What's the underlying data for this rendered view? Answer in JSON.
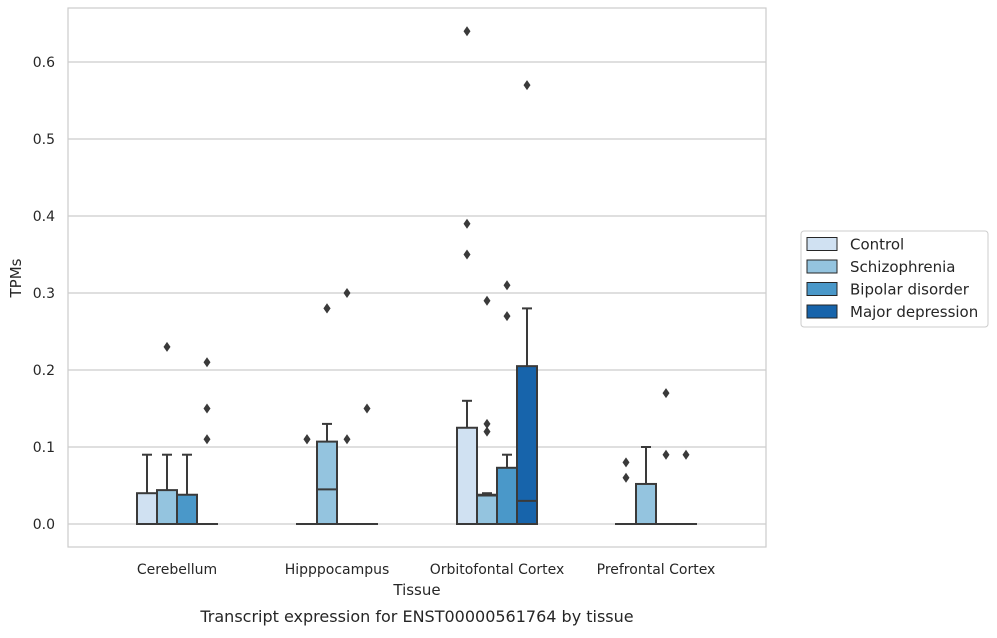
{
  "chart_data": {
    "type": "box",
    "title": "",
    "caption": "Transcript expression for ENST00000561764 by tissue",
    "xlabel": "Tissue",
    "ylabel": "TPMs",
    "ylim": [
      -0.032,
      0.67
    ],
    "yticks": [
      "0.0",
      "0.1",
      "0.2",
      "0.3",
      "0.4",
      "0.5",
      "0.6"
    ],
    "grid": "horizontal",
    "legend_position": "right",
    "categories": [
      "Cerebellum",
      "Hipppocampus",
      "Orbitofontal Cortex",
      "Prefrontal Cortex"
    ],
    "series": [
      {
        "name": "Control",
        "color": "#d0e1f2",
        "boxes": [
          {
            "q1": 0,
            "median": 0,
            "q3": 0.04,
            "whisker_low": 0,
            "whisker_high": 0.09,
            "outliers": []
          },
          {
            "q1": 0,
            "median": 0,
            "q3": 0,
            "whisker_low": 0,
            "whisker_high": 0,
            "outliers": [
              0.11,
              0.11
            ]
          },
          {
            "q1": 0,
            "median": 0,
            "q3": 0.125,
            "whisker_low": 0,
            "whisker_high": 0.16,
            "outliers": [
              0.35,
              0.39,
              0.64
            ]
          },
          {
            "q1": 0,
            "median": 0,
            "q3": 0,
            "whisker_low": 0,
            "whisker_high": 0,
            "outliers": [
              0.06,
              0.08
            ]
          }
        ]
      },
      {
        "name": "Schizophrenia",
        "color": "#94c4df",
        "boxes": [
          {
            "q1": 0,
            "median": 0,
            "q3": 0.044,
            "whisker_low": 0,
            "whisker_high": 0.09,
            "outliers": [
              0.23
            ]
          },
          {
            "q1": 0,
            "median": 0.045,
            "q3": 0.107,
            "whisker_low": 0,
            "whisker_high": 0.13,
            "outliers": [
              0.28,
              0.28
            ]
          },
          {
            "q1": 0,
            "median": 0.037,
            "q3": 0.038,
            "whisker_low": 0,
            "whisker_high": 0.04,
            "outliers": [
              0.12,
              0.13,
              0.29
            ]
          },
          {
            "q1": 0,
            "median": 0,
            "q3": 0.052,
            "whisker_low": 0,
            "whisker_high": 0.1,
            "outliers": []
          }
        ]
      },
      {
        "name": "Bipolar disorder",
        "color": "#4a98c9",
        "boxes": [
          {
            "q1": 0,
            "median": 0,
            "q3": 0.038,
            "whisker_low": 0,
            "whisker_high": 0.09,
            "outliers": []
          },
          {
            "q1": 0,
            "median": 0,
            "q3": 0,
            "whisker_low": 0,
            "whisker_high": 0,
            "outliers": [
              0.11,
              0.3
            ]
          },
          {
            "q1": 0,
            "median": 0,
            "q3": 0.073,
            "whisker_low": 0,
            "whisker_high": 0.09,
            "outliers": [
              0.27,
              0.31
            ]
          },
          {
            "q1": 0,
            "median": 0,
            "q3": 0,
            "whisker_low": 0,
            "whisker_high": 0,
            "outliers": [
              0.09,
              0.17
            ]
          }
        ]
      },
      {
        "name": "Major depression",
        "color": "#1764ab",
        "boxes": [
          {
            "q1": 0,
            "median": 0,
            "q3": 0,
            "whisker_low": 0,
            "whisker_high": 0,
            "outliers": [
              0.11,
              0.15,
              0.21
            ]
          },
          {
            "q1": 0,
            "median": 0,
            "q3": 0,
            "whisker_low": 0,
            "whisker_high": 0,
            "outliers": [
              0.15
            ]
          },
          {
            "q1": 0,
            "median": 0.03,
            "q3": 0.205,
            "whisker_low": 0,
            "whisker_high": 0.28,
            "outliers": [
              0.57
            ]
          },
          {
            "q1": 0,
            "median": 0,
            "q3": 0,
            "whisker_low": 0,
            "whisker_high": 0,
            "outliers": [
              0.09
            ]
          }
        ]
      }
    ]
  }
}
